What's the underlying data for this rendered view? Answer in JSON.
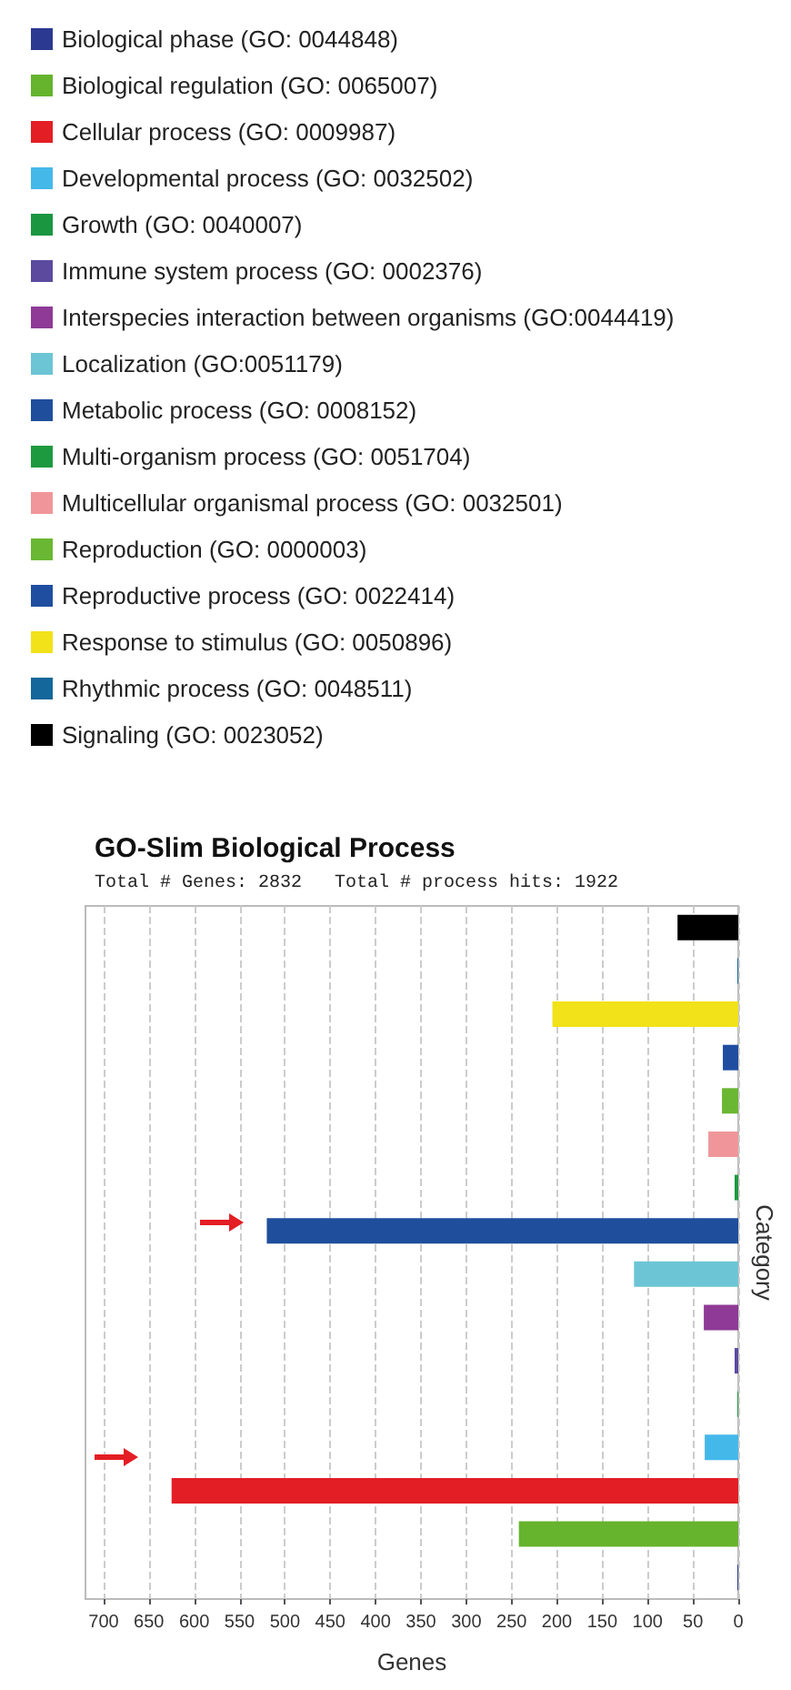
{
  "chart_data": {
    "type": "bar",
    "orientation": "horizontal",
    "title": "GO-Slim Biological Process",
    "subtitle": "Total # Genes: 2832   Total # process hits: 1922",
    "xlabel": "Genes",
    "ylabel": "Category",
    "categories": [
      null,
      null,
      null,
      null,
      null,
      null,
      null,
      null,
      null,
      null,
      null,
      null,
      null,
      null,
      null,
      null
    ],
    "series": [
      {
        "name": "Biological phase (GO: 0044848)",
        "color": "#2b3990",
        "values": [
          null,
          null,
          null,
          null,
          null,
          null,
          null,
          null,
          null,
          null,
          null,
          null,
          null,
          null,
          null,
          1
        ]
      },
      {
        "name": "Biological regulation (GO: 0065007)",
        "color": "#66b32e",
        "values": [
          null,
          null,
          null,
          null,
          null,
          null,
          null,
          null,
          null,
          null,
          null,
          null,
          null,
          null,
          242,
          null
        ]
      },
      {
        "name": "Cellular process (GO: 0009987)",
        "color": "#e31e24",
        "values": [
          null,
          null,
          null,
          null,
          null,
          null,
          null,
          null,
          null,
          null,
          null,
          null,
          null,
          625,
          null,
          null
        ]
      },
      {
        "name": "Developmental process (GO: 0032502)",
        "color": "#45b8ea",
        "values": [
          null,
          null,
          null,
          null,
          null,
          null,
          null,
          null,
          null,
          null,
          null,
          null,
          37,
          null,
          null,
          null
        ]
      },
      {
        "name": "Growth (GO: 0040007)",
        "color": "#1a9641",
        "values": [
          null,
          null,
          null,
          null,
          null,
          null,
          null,
          null,
          null,
          null,
          null,
          1,
          null,
          null,
          null,
          null
        ]
      },
      {
        "name": "Immune system process (GO: 0002376)",
        "color": "#5b4a9e",
        "values": [
          null,
          null,
          null,
          null,
          null,
          null,
          null,
          null,
          null,
          null,
          4,
          null,
          null,
          null,
          null,
          null
        ]
      },
      {
        "name": "Interspecies interaction between organisms (GO:0044419)",
        "color": "#8e3a96",
        "values": [
          null,
          null,
          null,
          null,
          null,
          null,
          null,
          null,
          null,
          38,
          null,
          null,
          null,
          null,
          null,
          null
        ]
      },
      {
        "name": "Localization (GO:0051179)",
        "color": "#6cc5d5",
        "values": [
          null,
          null,
          null,
          null,
          null,
          null,
          null,
          null,
          115,
          null,
          null,
          null,
          null,
          null,
          null,
          null
        ]
      },
      {
        "name": "Metabolic process (GO: 0008152)",
        "color": "#1f4e9c",
        "values": [
          null,
          null,
          null,
          null,
          null,
          null,
          null,
          520,
          null,
          null,
          null,
          null,
          null,
          null,
          null,
          null
        ]
      },
      {
        "name": "Multi-organism process (GO: 0051704)",
        "color": "#1d9a3f",
        "values": [
          null,
          null,
          null,
          null,
          null,
          null,
          4,
          null,
          null,
          null,
          null,
          null,
          null,
          null,
          null,
          null
        ]
      },
      {
        "name": "Multicellular organismal process (GO: 0032501)",
        "color": "#f0969a",
        "values": [
          null,
          null,
          null,
          null,
          null,
          33,
          null,
          null,
          null,
          null,
          null,
          null,
          null,
          null,
          null,
          null
        ]
      },
      {
        "name": "Reproduction (GO: 0000003)",
        "color": "#6ab733",
        "values": [
          null,
          null,
          null,
          null,
          18,
          null,
          null,
          null,
          null,
          null,
          null,
          null,
          null,
          null,
          null,
          null
        ]
      },
      {
        "name": "Reproductive process (GO: 0022414)",
        "color": "#1f4ea0",
        "values": [
          null,
          null,
          null,
          17,
          null,
          null,
          null,
          null,
          null,
          null,
          null,
          null,
          null,
          null,
          null,
          null
        ]
      },
      {
        "name": "Response to stimulus (GO: 0050896)",
        "color": "#f2e21a",
        "values": [
          null,
          null,
          205,
          null,
          null,
          null,
          null,
          null,
          null,
          null,
          null,
          null,
          null,
          null,
          null,
          null
        ]
      },
      {
        "name": "Rhythmic process (GO: 0048511)",
        "color": "#13679a",
        "values": [
          null,
          1,
          null,
          null,
          null,
          null,
          null,
          null,
          null,
          null,
          null,
          null,
          null,
          null,
          null,
          null
        ]
      },
      {
        "name": "Signaling (GO: 0023052)",
        "color": "#000000",
        "values": [
          67,
          null,
          null,
          null,
          null,
          null,
          null,
          null,
          null,
          null,
          null,
          null,
          null,
          null,
          null,
          null
        ]
      }
    ],
    "xlim": [
      720,
      0
    ],
    "xticks": [
      700,
      650,
      600,
      550,
      500,
      450,
      400,
      350,
      300,
      250,
      200,
      150,
      100,
      50,
      0
    ],
    "grid": "x",
    "legend": "top left",
    "tick_labels": "x"
  }
}
